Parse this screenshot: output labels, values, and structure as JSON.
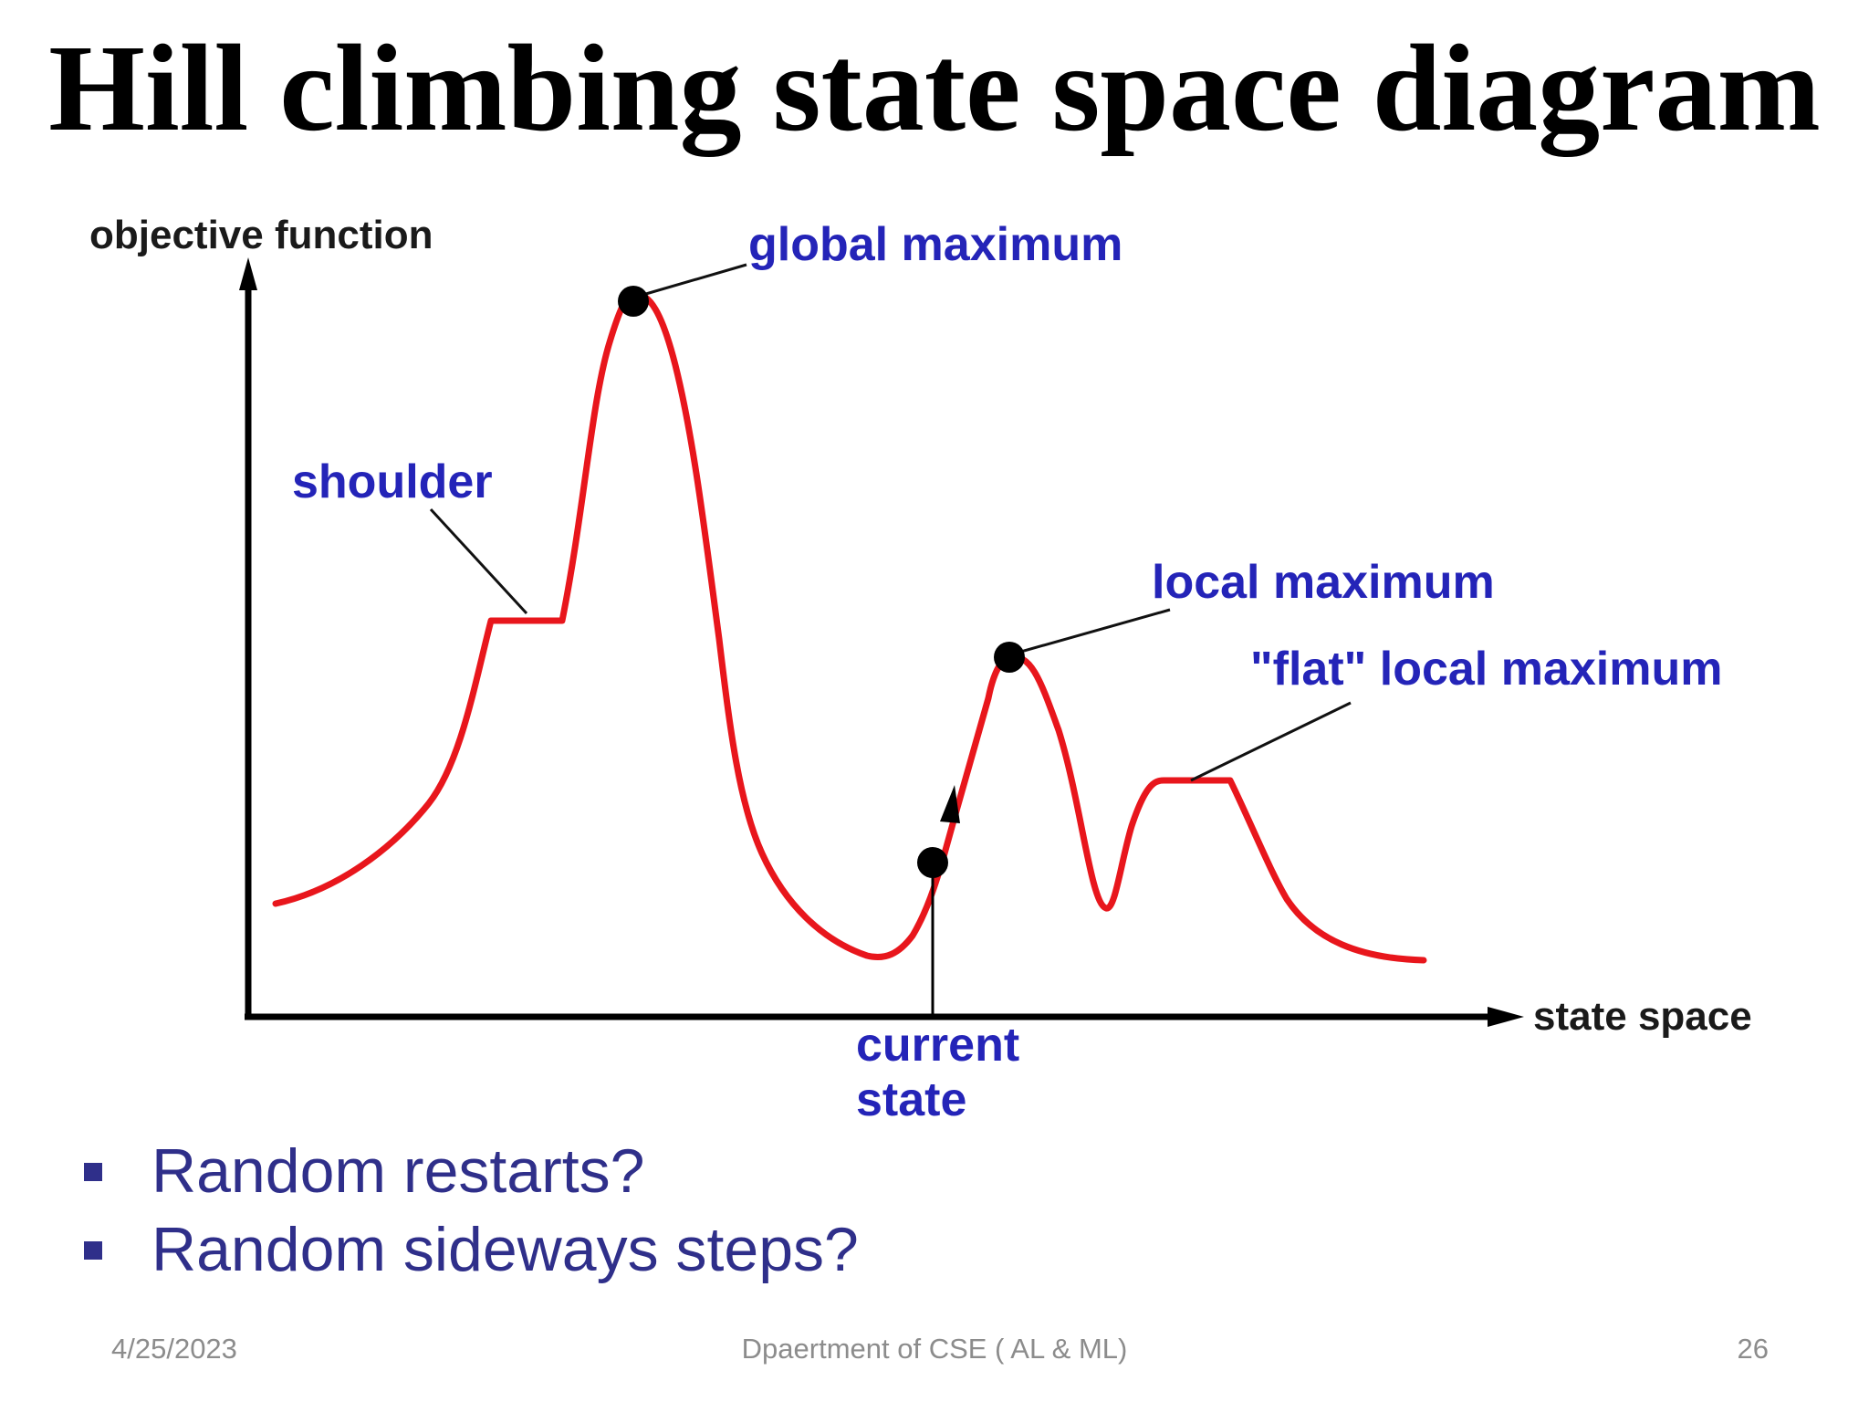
{
  "slide": {
    "title": "Hill climbing state space diagram",
    "bullets": [
      "Random restarts?",
      "Random sideways steps?"
    ],
    "footer": {
      "date": "4/25/2023",
      "department": "Dpaertment of CSE ( AL & ML)",
      "page": "26"
    }
  },
  "diagram": {
    "y_axis_label": "objective function",
    "x_axis_label": "state space",
    "labels": {
      "global_maximum": "global maximum",
      "shoulder": "shoulder",
      "local_maximum": "local maximum",
      "flat_local_maximum": "\"flat\" local maximum",
      "current_state_line1": "current",
      "current_state_line2": "state"
    },
    "colors": {
      "curve": "#e8161c",
      "label": "#2424b8",
      "axis": "#000000"
    }
  }
}
